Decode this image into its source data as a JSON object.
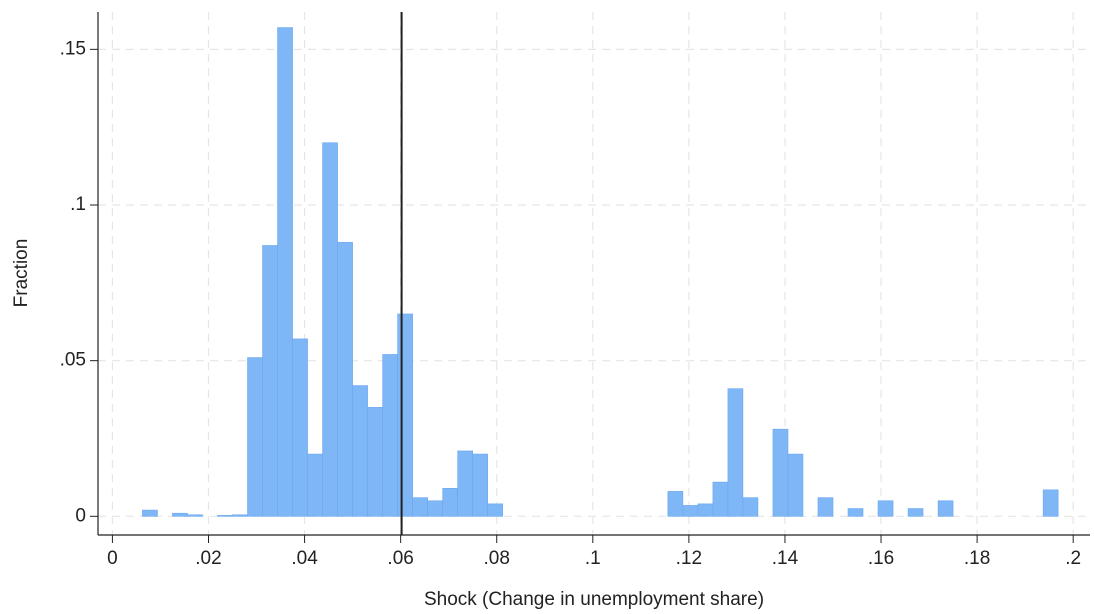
{
  "chart_data": {
    "type": "histogram",
    "xlabel": "Shock (Change in unemployment share)",
    "ylabel": "Fraction",
    "bins": [
      0.00625,
      0.009375,
      0.0125,
      0.015625,
      0.01875,
      0.021875,
      0.025,
      0.028125,
      0.03125,
      0.034375,
      0.0375,
      0.040625,
      0.04375,
      0.046875,
      0.05,
      0.053125,
      0.05625,
      0.059375,
      0.0625,
      0.065625,
      0.06875,
      0.071875,
      0.075,
      0.078125,
      0.08125,
      0.084375,
      0.0875,
      0.090625,
      0.09375,
      0.096875,
      0.1,
      0.103125,
      0.10625,
      0.109375,
      0.1125,
      0.115625,
      0.11875,
      0.121875,
      0.125,
      0.128125,
      0.13125,
      0.134375,
      0.1375,
      0.140625,
      0.14375,
      0.146875,
      0.15,
      0.153125,
      0.15625,
      0.159375,
      0.1625,
      0.165625,
      0.16875,
      0.171875,
      0.175,
      0.178125,
      0.18125,
      0.184375,
      0.1875,
      0.190625,
      0.19375,
      0.196875
    ],
    "values": [
      0.002,
      0,
      0.001,
      0.0005,
      0,
      0.0003,
      0.0005,
      0.051,
      0.087,
      0.157,
      0.057,
      0.02,
      0.12,
      0.088,
      0.042,
      0.035,
      0.052,
      0.065,
      0.006,
      0.005,
      0.009,
      0.021,
      0.02,
      0.004,
      0,
      0,
      0,
      0,
      0,
      0,
      0,
      0,
      0,
      0,
      0,
      0.008,
      0.0035,
      0.004,
      0.011,
      0.041,
      0.006,
      0,
      0.028,
      0.02,
      0,
      0.006,
      0,
      0.0025,
      0,
      0.005,
      0,
      0.0025,
      0,
      0.005,
      0,
      0,
      0,
      0,
      0,
      0,
      0.0085
    ],
    "color": "#7eb6f6",
    "vline": 0.0602,
    "xlim": [
      -0.003,
      0.2035
    ],
    "ylim": [
      -0.006,
      0.162
    ],
    "xticks": [
      0,
      {
        "value": 0.02,
        "label": ".02"
      },
      {
        "value": 0.04,
        "label": ".04"
      },
      {
        "value": 0.06,
        "label": ".06"
      },
      {
        "value": 0.08,
        "label": ".08"
      },
      {
        "value": 0.1,
        "label": ".1"
      },
      {
        "value": 0.12,
        "label": ".12"
      },
      {
        "value": 0.14,
        "label": ".14"
      },
      {
        "value": 0.16,
        "label": ".16"
      },
      {
        "value": 0.18,
        "label": ".18"
      },
      {
        "value": 0.2,
        "label": ".2"
      }
    ],
    "yticks": [
      0,
      {
        "value": 0.05,
        "label": ".05"
      },
      {
        "value": 0.1,
        "label": ".1"
      },
      {
        "value": 0.15,
        "label": ".15"
      }
    ],
    "grid": true
  }
}
